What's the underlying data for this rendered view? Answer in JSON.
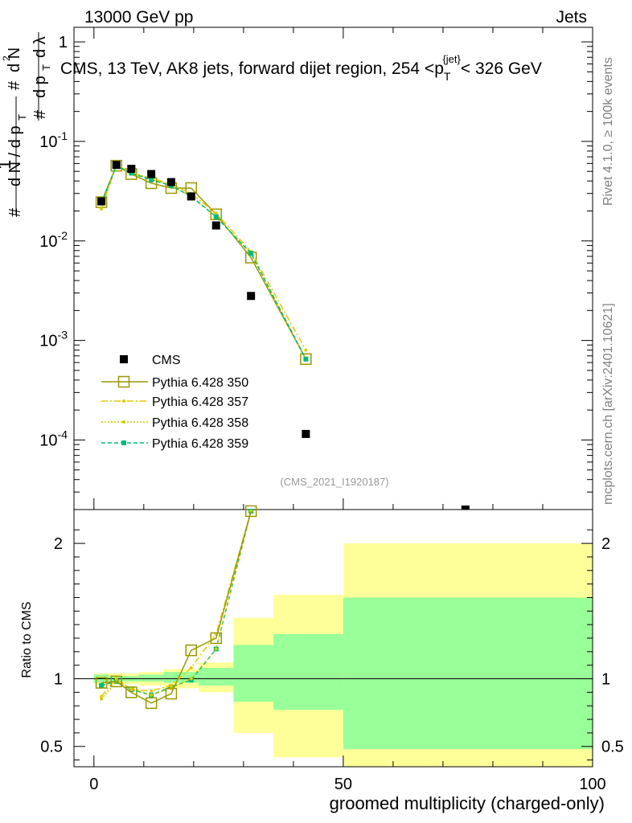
{
  "header": {
    "left": "13000 GeV pp",
    "right": "Jets"
  },
  "title": "CMS, 13 TeV, AK8 jets, forward dijet region, 254 <p",
  "title_sub": "T",
  "title_sup": "{jet}",
  "title_end": "< 326 GeV",
  "side_labels": {
    "rivet": "Rivet 4.1.0, ≥ 100k events",
    "mcplots": "mcplots.cern.ch [arXiv:2401.10621]"
  },
  "watermark": "(CMS_2021_I1920187)",
  "ylabel_main": "1/(dN/dp_T) d²N/(dp_T dλ)",
  "ylabel_ratio": "Ratio to CMS",
  "xlabel": "groomed multiplicity (charged-only)",
  "colors": {
    "cms": "#000000",
    "p350": "#999900",
    "p357": "#e6c800",
    "p358": "#cccc00",
    "p359": "#00bb77",
    "band_inner": "#99ff99",
    "band_outer": "#ffff99"
  },
  "chart_data": {
    "type": "scatter",
    "x_range": [
      -4,
      100
    ],
    "main_yscale": "log",
    "main_yrange": [
      2e-05,
      1.4
    ],
    "main_yticks": [
      "1",
      "10^{-1}",
      "10^{-2}",
      "10^{-3}",
      "10^{-4}"
    ],
    "ratio_yrange": [
      0.35,
      2.25
    ],
    "ratio_yticks": [
      "0.5",
      "1",
      "2"
    ],
    "xticks": [
      "0",
      "50",
      "100"
    ],
    "legend_position": "bottom-left",
    "x": [
      1.5,
      4.5,
      7.5,
      11.5,
      15.5,
      19.5,
      24.5,
      31.5,
      42.5,
      74.5
    ],
    "series": [
      {
        "name": "CMS",
        "values": [
          0.025,
          0.058,
          0.053,
          0.047,
          0.039,
          0.028,
          0.0143,
          0.0028,
          0.000115,
          1.9e-05
        ]
      },
      {
        "name": "Pythia 6.428 350",
        "values": [
          0.0245,
          0.057,
          0.047,
          0.038,
          0.034,
          0.034,
          0.0185,
          0.0068,
          0.00065,
          null
        ]
      },
      {
        "name": "Pythia 6.428 357",
        "values": [
          0.021,
          0.058,
          0.048,
          0.043,
          0.037,
          0.03,
          0.019,
          0.0078,
          0.0008,
          null
        ]
      },
      {
        "name": "Pythia 6.428 358",
        "values": [
          0.021,
          0.058,
          0.049,
          0.042,
          0.036,
          0.028,
          0.0175,
          0.0075,
          0.00065,
          null
        ]
      },
      {
        "name": "Pythia 6.428 359",
        "values": [
          0.024,
          0.057,
          0.048,
          0.041,
          0.036,
          0.028,
          0.0175,
          0.0075,
          0.00065,
          null
        ]
      }
    ],
    "ratio_series": [
      {
        "name": "Pythia 6.428 350",
        "values": [
          0.97,
          0.98,
          0.9,
          0.82,
          0.89,
          1.21,
          1.3,
          2.3
        ]
      },
      {
        "name": "Pythia 6.428 357",
        "values": [
          0.87,
          1.0,
          0.92,
          0.91,
          0.95,
          1.08,
          1.33,
          2.35
        ]
      },
      {
        "name": "Pythia 6.428 358",
        "values": [
          0.85,
          0.98,
          0.93,
          0.88,
          0.93,
          1.0,
          1.22,
          2.3
        ]
      },
      {
        "name": "Pythia 6.428 359",
        "values": [
          0.95,
          0.98,
          0.92,
          0.88,
          0.94,
          0.99,
          1.22,
          2.27
        ]
      }
    ],
    "uncertainty_bands": [
      {
        "x_range": [
          0,
          3
        ],
        "inner": [
          0.97,
          1.03
        ],
        "outer": [
          0.96,
          1.04
        ]
      },
      {
        "x_range": [
          3,
          6
        ],
        "inner": [
          0.98,
          1.02
        ],
        "outer": [
          0.96,
          1.04
        ]
      },
      {
        "x_range": [
          6,
          9
        ],
        "inner": [
          0.98,
          1.02
        ],
        "outer": [
          0.96,
          1.04
        ]
      },
      {
        "x_range": [
          9,
          14
        ],
        "inner": [
          0.98,
          1.03
        ],
        "outer": [
          0.95,
          1.05
        ]
      },
      {
        "x_range": [
          14,
          21
        ],
        "inner": [
          0.97,
          1.05
        ],
        "outer": [
          0.93,
          1.07
        ]
      },
      {
        "x_range": [
          21,
          28
        ],
        "inner": [
          0.95,
          1.08
        ],
        "outer": [
          0.9,
          1.12
        ]
      },
      {
        "x_range": [
          28,
          36
        ],
        "inner": [
          0.83,
          1.25
        ],
        "outer": [
          0.6,
          1.45
        ]
      },
      {
        "x_range": [
          36,
          50
        ],
        "inner": [
          0.77,
          1.33
        ],
        "outer": [
          0.42,
          1.62
        ]
      },
      {
        "x_range": [
          50,
          100
        ],
        "inner": [
          0.48,
          1.6
        ],
        "outer": [
          0.35,
          2.0
        ]
      }
    ]
  }
}
